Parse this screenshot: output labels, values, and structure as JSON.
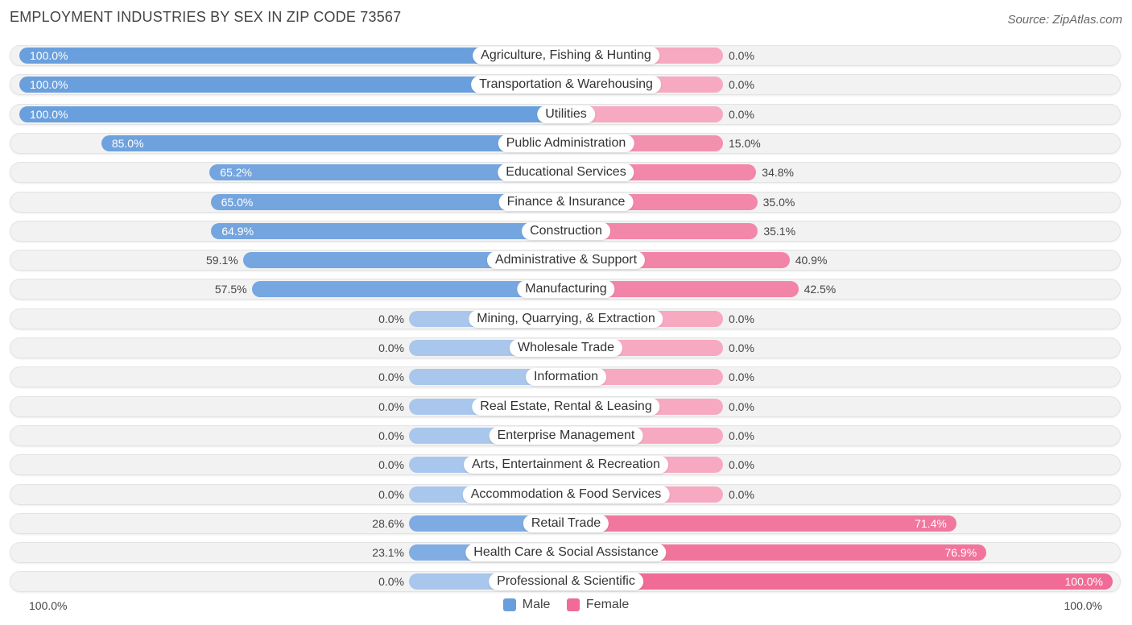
{
  "title": "EMPLOYMENT INDUSTRIES BY SEX IN ZIP CODE 73567",
  "source": "Source: ZipAtlas.com",
  "colors": {
    "male_strong": "#6a9fdd",
    "male_light": "#a9c7ec",
    "female_strong": "#f06b96",
    "female_light": "#f6a9c1",
    "row_bg": "#f2f2f2"
  },
  "legend": {
    "male": "Male",
    "female": "Female"
  },
  "axis": {
    "left_label": "100.0%",
    "right_label": "100.0%"
  },
  "chart_data": {
    "type": "bar",
    "orientation": "horizontal-diverging",
    "title": "EMPLOYMENT INDUSTRIES BY SEX IN ZIP CODE 73567",
    "categories": [
      "Agriculture, Fishing & Hunting",
      "Transportation & Warehousing",
      "Utilities",
      "Public Administration",
      "Educational Services",
      "Finance & Insurance",
      "Construction",
      "Administrative & Support",
      "Manufacturing",
      "Mining, Quarrying, & Extraction",
      "Wholesale Trade",
      "Information",
      "Real Estate, Rental & Leasing",
      "Enterprise Management",
      "Arts, Entertainment & Recreation",
      "Accommodation & Food Services",
      "Retail Trade",
      "Health Care & Social Assistance",
      "Professional & Scientific"
    ],
    "series": [
      {
        "name": "Male",
        "values": [
          100.0,
          100.0,
          100.0,
          85.0,
          65.2,
          65.0,
          64.9,
          59.1,
          57.5,
          0.0,
          0.0,
          0.0,
          0.0,
          0.0,
          0.0,
          0.0,
          28.6,
          23.1,
          0.0
        ]
      },
      {
        "name": "Female",
        "values": [
          0.0,
          0.0,
          0.0,
          15.0,
          34.8,
          35.0,
          35.1,
          40.9,
          42.5,
          0.0,
          0.0,
          0.0,
          0.0,
          0.0,
          0.0,
          0.0,
          71.4,
          76.9,
          100.0
        ]
      }
    ],
    "value_labels": {
      "male": [
        "100.0%",
        "100.0%",
        "100.0%",
        "85.0%",
        "65.2%",
        "65.0%",
        "64.9%",
        "59.1%",
        "57.5%",
        "0.0%",
        "0.0%",
        "0.0%",
        "0.0%",
        "0.0%",
        "0.0%",
        "0.0%",
        "28.6%",
        "23.1%",
        "0.0%"
      ],
      "female": [
        "0.0%",
        "0.0%",
        "0.0%",
        "15.0%",
        "34.8%",
        "35.0%",
        "35.1%",
        "40.9%",
        "42.5%",
        "0.0%",
        "0.0%",
        "0.0%",
        "0.0%",
        "0.0%",
        "0.0%",
        "0.0%",
        "71.4%",
        "76.9%",
        "100.0%"
      ]
    },
    "xlim": [
      -100,
      100
    ],
    "legend_position": "bottom-center"
  }
}
